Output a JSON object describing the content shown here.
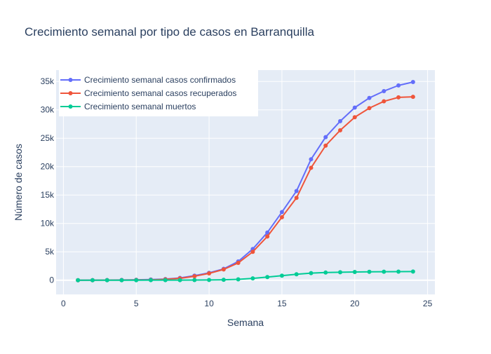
{
  "chart_data": {
    "type": "line",
    "title": "Crecimiento semanal por tipo de casos en Barranquilla",
    "xlabel": "Semana",
    "ylabel": "Número de casos",
    "xlim": [
      -0.5,
      25.5
    ],
    "ylim": [
      -2500,
      37000
    ],
    "xticks": [
      0,
      5,
      10,
      15,
      20,
      25
    ],
    "xtick_labels": [
      "0",
      "5",
      "10",
      "15",
      "20",
      "25"
    ],
    "yticks": [
      0,
      5000,
      10000,
      15000,
      20000,
      25000,
      30000,
      35000
    ],
    "ytick_labels": [
      "0",
      "5k",
      "10k",
      "15k",
      "20k",
      "25k",
      "30k",
      "35k"
    ],
    "grid": true,
    "legend_position": "top-left",
    "x": [
      1,
      2,
      3,
      4,
      5,
      6,
      7,
      8,
      9,
      10,
      11,
      12,
      13,
      14,
      15,
      16,
      17,
      18,
      19,
      20,
      21,
      22,
      23,
      24
    ],
    "series": [
      {
        "name": "Crecimiento semanal casos confirmados",
        "color": "#636efa",
        "values": [
          5,
          15,
          30,
          50,
          80,
          120,
          200,
          400,
          800,
          1300,
          2000,
          3300,
          5500,
          8400,
          12000,
          15700,
          21300,
          25200,
          28000,
          30400,
          32100,
          33300,
          34300,
          34900
        ]
      },
      {
        "name": "Crecimiento semanal casos recuperados",
        "color": "#ef553b",
        "values": [
          0,
          5,
          10,
          20,
          40,
          60,
          150,
          330,
          700,
          1200,
          1900,
          3050,
          5000,
          7700,
          11100,
          14500,
          19800,
          23700,
          26400,
          28700,
          30300,
          31500,
          32200,
          32300
        ]
      },
      {
        "name": "Crecimiento semanal muertos",
        "color": "#00cc96",
        "values": [
          0,
          0,
          0,
          0,
          5,
          10,
          15,
          20,
          30,
          40,
          80,
          150,
          330,
          550,
          800,
          1050,
          1250,
          1350,
          1400,
          1450,
          1480,
          1500,
          1510,
          1520
        ]
      }
    ]
  }
}
